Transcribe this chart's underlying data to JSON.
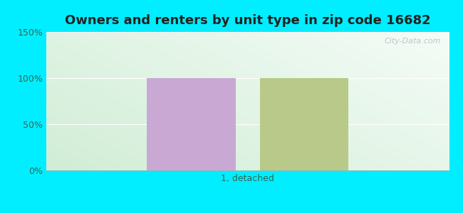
{
  "title": "Owners and renters by unit type in zip code 16682",
  "title_fontsize": 13,
  "categories": [
    "1, detached"
  ],
  "owner_values": [
    100
  ],
  "renter_values": [
    100
  ],
  "owner_color": "#c9a8d4",
  "renter_color": "#b8c98a",
  "ylim": [
    0,
    150
  ],
  "yticks": [
    0,
    50,
    100,
    150
  ],
  "ytick_labels": [
    "0%",
    "50%",
    "100%",
    "150%"
  ],
  "bar_width": 0.22,
  "bar_gap": 0.06,
  "outer_bg": "#00eeff",
  "watermark": "City-Data.com",
  "tick_label_fontsize": 9,
  "tick_color": "#336655",
  "cat_label_fontsize": 9,
  "bg_left": "#d4edd8",
  "bg_right": "#edfaf5",
  "bg_top": "#f0faf6",
  "bg_bottom": "#d8edd8"
}
